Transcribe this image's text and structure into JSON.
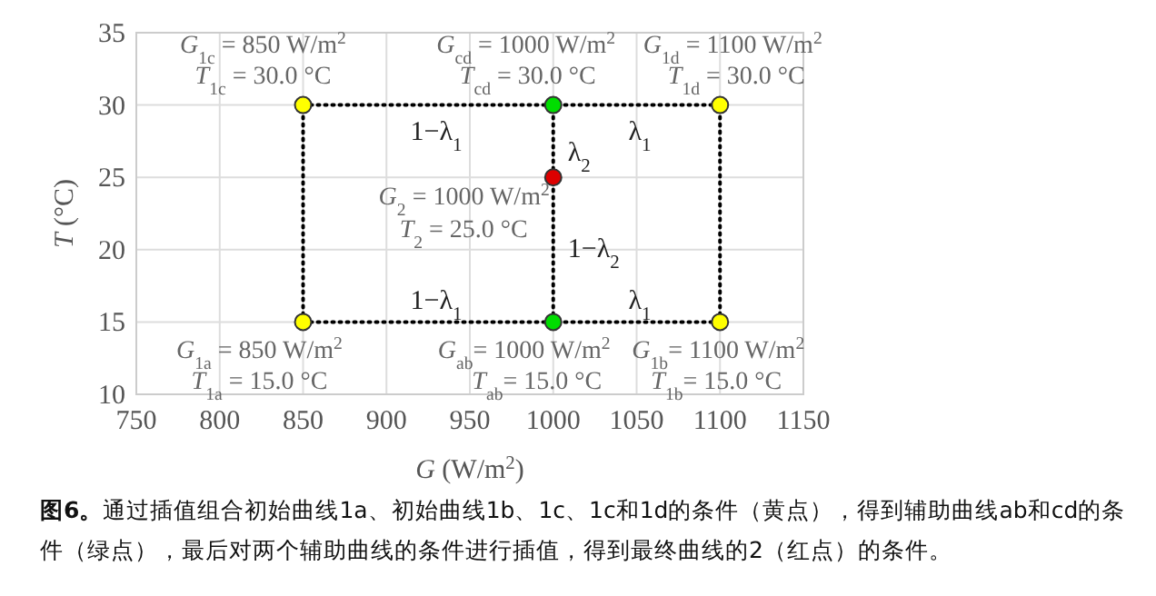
{
  "chart_data": {
    "type": "scatter",
    "xlabel": "*G* (W/m$^{2}$)",
    "ylabel": "*T* (°C)",
    "xlim": [
      750,
      1150
    ],
    "ylim": [
      10,
      35
    ],
    "xticks": [
      750,
      800,
      850,
      900,
      950,
      1000,
      1050,
      1100,
      1150
    ],
    "yticks": [
      10,
      15,
      20,
      25,
      30,
      35
    ],
    "grid": true,
    "marker": "circle",
    "series": [
      {
        "type": "line",
        "x": [
          850,
          1000,
          1100
        ],
        "values": [
          30,
          30,
          30
        ],
        "color": "#000000",
        "line_style": "dotted",
        "marker": "none"
      },
      {
        "type": "line",
        "x": [
          850,
          1000,
          1100
        ],
        "values": [
          15,
          15,
          15
        ],
        "color": "#000000",
        "line_style": "dotted",
        "marker": "none"
      },
      {
        "type": "line",
        "x": [
          850,
          850
        ],
        "values": [
          15,
          30
        ],
        "color": "#000000",
        "line_style": "dotted",
        "marker": "none"
      },
      {
        "type": "line",
        "x": [
          1000,
          1000
        ],
        "values": [
          15,
          30
        ],
        "color": "#000000",
        "line_style": "dotted",
        "marker": "none"
      },
      {
        "type": "line",
        "x": [
          1100,
          1100
        ],
        "values": [
          15,
          30
        ],
        "color": "#000000",
        "line_style": "dotted",
        "marker": "none"
      },
      {
        "x": [
          850,
          1100,
          850,
          1100
        ],
        "values": [
          15,
          15,
          30,
          30
        ],
        "color": "#ffff00"
      },
      {
        "x": [
          1000,
          1000
        ],
        "values": [
          15,
          30
        ],
        "color": "#00dd00"
      },
      {
        "x": [
          1000
        ],
        "values": [
          25
        ],
        "color": "#dd0000"
      }
    ],
    "annotations": [
      {
        "text": "*G*$_{1c}$ = 850 W/m$^{2}$",
        "x": 850,
        "y": 30
      },
      {
        "text": "*T*$_{1c}$ = 30.0 °C",
        "x": 850,
        "y": 30
      },
      {
        "text": "*G*$_{cd}$ = 1000 W/m$^{2}$",
        "x": 1000,
        "y": 30
      },
      {
        "text": "*T*$_{cd}$ = 30.0 °C",
        "x": 1000,
        "y": 30
      },
      {
        "text": "*G*$_{1d}$ = 1100 W/m$^{2}$",
        "x": 1100,
        "y": 30
      },
      {
        "text": "*T*$_{1d}$ = 30.0 °C",
        "x": 1100,
        "y": 30
      },
      {
        "text": "*G*$_{2}$ = 1000 W/m$^{2}$",
        "x": 1000,
        "y": 25
      },
      {
        "text": "*T*$_{2}$ = 25.0 °C",
        "x": 1000,
        "y": 25
      },
      {
        "text": "*G*$_{1a}$ = 850 W/m$^{2}$",
        "x": 850,
        "y": 15
      },
      {
        "text": "*T*$_{1a}$ = 15.0 °C",
        "x": 850,
        "y": 15
      },
      {
        "text": "*G*$_{ab}$= 1000 W/m$^{2}$",
        "x": 1000,
        "y": 15
      },
      {
        "text": "*T*$_{ab}$= 15.0 °C",
        "x": 1000,
        "y": 15
      },
      {
        "text": "*G*$_{1b}$= 1100 W/m$^{2}$",
        "x": 1100,
        "y": 15
      },
      {
        "text": "*T*$_{1b}$= 15.0 °C",
        "x": 1100,
        "y": 15
      },
      "1−λ$_{1}$",
      "λ$_{1}$",
      {
        "text": "λ$_{2}$",
        "x": 1000,
        "y": 27.5
      },
      {
        "text": "1−λ$_{2}$",
        "x": 1000,
        "y": 20
      },
      "1−λ$_{1}$",
      "λ$_{1}$",
      "**图6。**通过插值组合初始曲线1a、初始曲线1b、1c、1c和1d的条件（黄点），得到辅助曲线ab和cd的条件（绿点），最后对两个辅助曲线的条件进行插值，得到最终曲线的2（红点）的条件。"
    ]
  }
}
